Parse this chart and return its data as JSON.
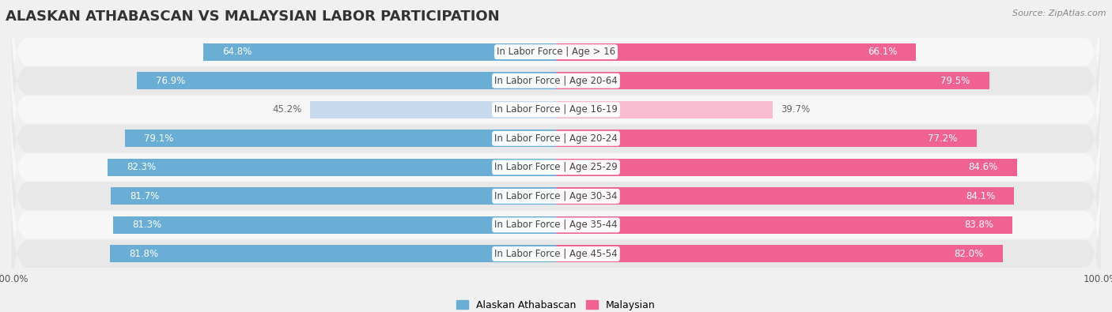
{
  "title": "ALASKAN ATHABASCAN VS MALAYSIAN LABOR PARTICIPATION",
  "source": "Source: ZipAtlas.com",
  "categories": [
    "In Labor Force | Age > 16",
    "In Labor Force | Age 20-64",
    "In Labor Force | Age 16-19",
    "In Labor Force | Age 20-24",
    "In Labor Force | Age 25-29",
    "In Labor Force | Age 30-34",
    "In Labor Force | Age 35-44",
    "In Labor Force | Age 45-54"
  ],
  "alaskan_values": [
    64.8,
    76.9,
    45.2,
    79.1,
    82.3,
    81.7,
    81.3,
    81.8
  ],
  "malaysian_values": [
    66.1,
    79.5,
    39.7,
    77.2,
    84.6,
    84.1,
    83.8,
    82.0
  ],
  "alaskan_color_dark": "#6aaed6",
  "alaskan_color_light": "#c6d9ed",
  "malaysian_color_dark": "#f06292",
  "malaysian_color_light": "#f8bbd0",
  "background_color": "#f0f0f0",
  "row_bg_even": "#f7f7f7",
  "row_bg_odd": "#e8e8e8",
  "max_value": 100.0,
  "bar_height": 0.6,
  "title_fontsize": 13,
  "label_fontsize": 8.5,
  "tick_fontsize": 8.5,
  "legend_fontsize": 9,
  "value_threshold": 50
}
